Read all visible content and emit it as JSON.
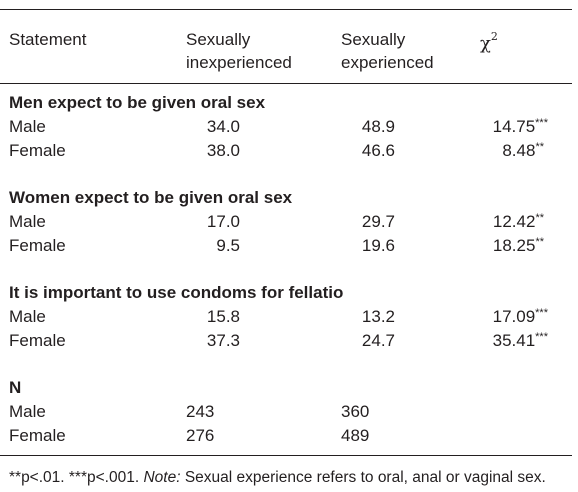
{
  "table": {
    "headers": {
      "statement": "Statement",
      "inexperienced_line1": "Sexually",
      "inexperienced_line2": "inexperienced",
      "experienced_line1": "Sexually",
      "experienced_line2": "experienced",
      "chi_symbol": "χ",
      "chi_exp": "2"
    },
    "groups": [
      {
        "title": "Men expect to be given oral sex",
        "rows": [
          {
            "label": "Male",
            "inexp": "34.0",
            "exp": "48.9",
            "chi": "14.75",
            "sig": "***"
          },
          {
            "label": "Female",
            "inexp": "38.0",
            "exp": "46.6",
            "chi": "8.48",
            "sig": "**"
          }
        ]
      },
      {
        "title": "Women expect to be given oral sex",
        "rows": [
          {
            "label": "Male",
            "inexp": "17.0",
            "exp": "29.7",
            "chi": "12.42",
            "sig": "**"
          },
          {
            "label": "Female",
            "inexp": "9.5",
            "exp": "19.6",
            "chi": "18.25",
            "sig": "**"
          }
        ]
      },
      {
        "title": "It is important to use condoms for fellatio",
        "rows": [
          {
            "label": "Male",
            "inexp": "15.8",
            "exp": "13.2",
            "chi": "17.09",
            "sig": "***"
          },
          {
            "label": "Female",
            "inexp": "37.3",
            "exp": "24.7",
            "chi": "35.41",
            "sig": "***"
          }
        ]
      },
      {
        "title": "N",
        "rows": [
          {
            "label": "Male",
            "inexp": "243",
            "exp": "360",
            "chi": "",
            "sig": ""
          },
          {
            "label": "Female",
            "inexp": "276",
            "exp": "489",
            "chi": "",
            "sig": ""
          }
        ]
      }
    ]
  },
  "footnote": {
    "significance": "**p<.01. ***p<.001. ",
    "note_label": "Note:",
    "note_text": " Sexual experience refers to oral, anal or vaginal sex."
  }
}
